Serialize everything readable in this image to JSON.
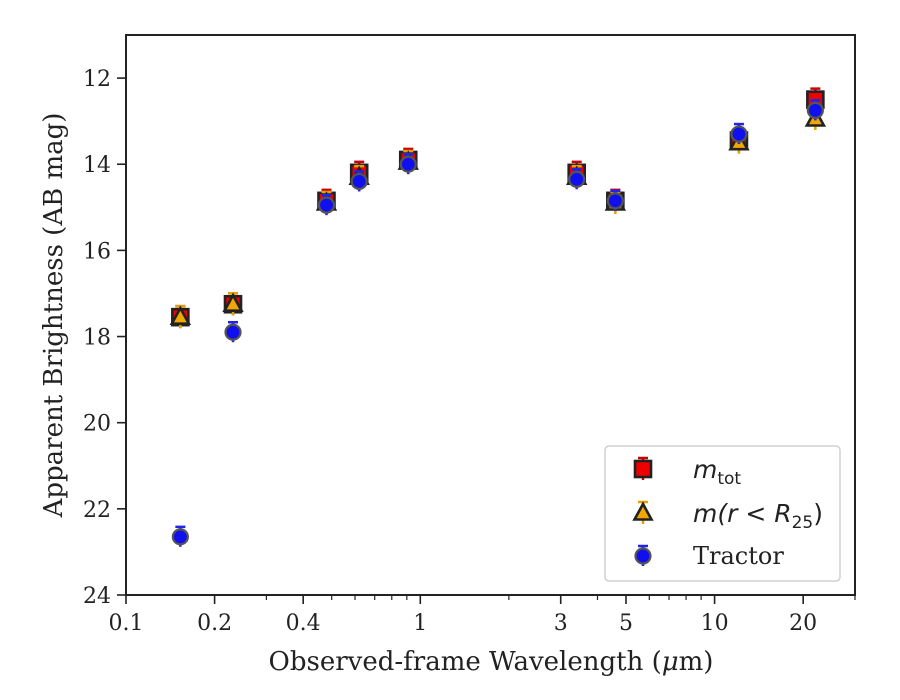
{
  "chart_data": {
    "type": "scatter",
    "xlabel": "Observed-frame Wavelength (μm)",
    "xlabel_parts": {
      "pre": "Observed-frame Wavelength (",
      "greek": "μ",
      "post": "m)"
    },
    "ylabel": "Apparent Brightness (AB mag)",
    "x_scale": "log",
    "y_inverted": true,
    "xlim": [
      0.1,
      30
    ],
    "ylim": [
      24,
      11
    ],
    "x_ticks": [
      {
        "value": 0.1,
        "label": "0.1"
      },
      {
        "value": 0.2,
        "label": "0.2"
      },
      {
        "value": 0.4,
        "label": "0.4"
      },
      {
        "value": 1,
        "label": "1"
      },
      {
        "value": 3,
        "label": "3"
      },
      {
        "value": 5,
        "label": "5"
      },
      {
        "value": 10,
        "label": "10"
      },
      {
        "value": 20,
        "label": "20"
      }
    ],
    "x_minor_ticks": [
      0.3,
      0.5,
      0.6,
      0.7,
      0.8,
      0.9,
      2,
      4,
      6,
      7,
      8,
      9,
      30
    ],
    "y_ticks": [
      {
        "value": 12,
        "label": "12"
      },
      {
        "value": 14,
        "label": "14"
      },
      {
        "value": 16,
        "label": "16"
      },
      {
        "value": 18,
        "label": "18"
      },
      {
        "value": 20,
        "label": "20"
      },
      {
        "value": 22,
        "label": "22"
      },
      {
        "value": 24,
        "label": "24"
      }
    ],
    "grid": false,
    "legend_position": "bottom-right",
    "series": [
      {
        "name": "m_tot",
        "marker": "square",
        "color": "#ee0000",
        "edge_color": "#222222",
        "error_color": "#cc0000",
        "x": [
          0.153,
          0.231,
          0.48,
          0.62,
          0.91,
          3.4,
          4.6,
          12.1,
          22
        ],
        "y": [
          17.55,
          17.25,
          14.85,
          14.2,
          13.9,
          14.2,
          14.85,
          13.45,
          12.5
        ]
      },
      {
        "name": "m(r<R_25)",
        "marker": "triangle",
        "color": "#f0a800",
        "edge_color": "#222222",
        "error_color": "#e8a000",
        "x": [
          0.153,
          0.231,
          0.48,
          0.62,
          0.91,
          3.4,
          4.6,
          12.1,
          22
        ],
        "y": [
          17.55,
          17.25,
          14.9,
          14.3,
          13.95,
          14.3,
          14.9,
          13.5,
          12.95
        ]
      },
      {
        "name": "Tractor",
        "marker": "circle",
        "color": "#1010ee",
        "edge_color": "#555555",
        "error_color": "#2222ee",
        "x": [
          0.153,
          0.231,
          0.48,
          0.62,
          0.91,
          3.4,
          4.6,
          12.1,
          22
        ],
        "y": [
          22.65,
          17.9,
          14.95,
          14.4,
          14.0,
          14.35,
          14.85,
          13.3,
          12.75
        ]
      }
    ],
    "legend_entries": [
      {
        "marker": "square",
        "base": "m",
        "sub": "tot",
        "tail": ""
      },
      {
        "marker": "triangle",
        "base": "m(r < R",
        "sub": "25",
        "tail": ")"
      },
      {
        "marker": "circle",
        "base": "Tractor",
        "sub": "",
        "tail": ""
      }
    ]
  }
}
